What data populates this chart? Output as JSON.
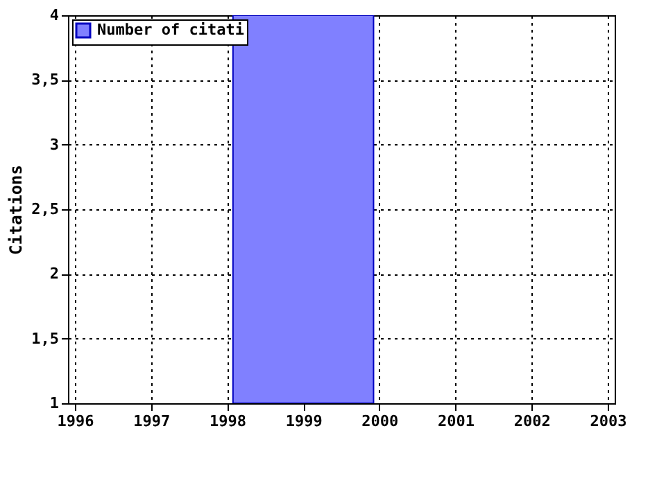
{
  "chart_data": {
    "type": "bar",
    "ylabel": "Citations",
    "x": [
      1999
    ],
    "series": [
      {
        "name": "Number of citati",
        "color": "#8080ff",
        "values": [
          4
        ]
      }
    ],
    "xlim": [
      1996,
      2003
    ],
    "xticks": [
      1996,
      1997,
      1998,
      1999,
      2000,
      2001,
      2002,
      2003
    ],
    "ylim": [
      1,
      4
    ],
    "yticks": [
      1,
      {
        "value": 1.5,
        "label": "1,5"
      },
      2,
      {
        "value": 2.5,
        "label": "2,5"
      },
      3,
      {
        "value": 3.5,
        "label": "3,5"
      },
      4
    ],
    "grid": true,
    "legend": "top left"
  }
}
